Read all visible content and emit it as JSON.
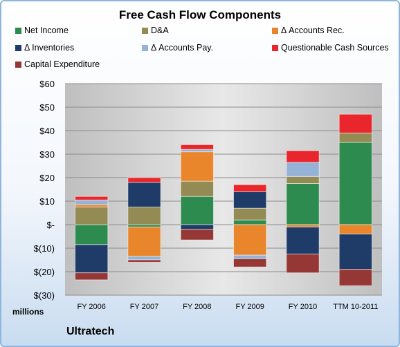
{
  "chart_data": {
    "type": "bar",
    "stacked": true,
    "title": "Free Cash Flow Components",
    "categories": [
      "FY 2006",
      "FY 2007",
      "FY 2008",
      "FY 2009",
      "FY 2010",
      "TTM 10-2011"
    ],
    "ylim": [
      -30,
      60
    ],
    "yticks": [
      60,
      50,
      40,
      30,
      20,
      10,
      0,
      -10,
      -20,
      -30
    ],
    "ytick_labels": [
      "$60",
      "$50",
      "$40",
      "$30",
      "$20",
      "$10",
      "$-",
      "$(10)",
      "$(20)",
      "$(30)"
    ],
    "units_label": "millions",
    "grid": true,
    "legend_position": "top",
    "series": [
      {
        "name": "Net Income",
        "color": "#2e8b4f",
        "values": [
          -8.5,
          -1,
          12,
          2,
          17.5,
          35
        ]
      },
      {
        "name": "D&A",
        "color": "#948a54",
        "values": [
          7.5,
          7.5,
          6.5,
          5,
          3,
          4
        ]
      },
      {
        "name": "Δ Accounts Rec.",
        "color": "#e9852a",
        "values": [
          1,
          -12.5,
          12.5,
          -13,
          -1,
          -4
        ]
      },
      {
        "name": "Δ Inventories",
        "color": "#1f3c68",
        "values": [
          -12,
          10.5,
          -2,
          7,
          -11.5,
          -15
        ]
      },
      {
        "name": "Δ Accounts Pay.",
        "color": "#95b3d7",
        "values": [
          2,
          -1.5,
          1,
          -1.5,
          6,
          0
        ]
      },
      {
        "name": "Questionable Cash Sources",
        "color": "#e8262c",
        "values": [
          1.5,
          2,
          2,
          3,
          5,
          8
        ]
      },
      {
        "name": "Capital Expenditure",
        "color": "#953735",
        "values": [
          -3,
          -1,
          -4.5,
          -3.5,
          -8,
          -7
        ]
      }
    ]
  },
  "footer": {
    "company": "Ultratech"
  }
}
